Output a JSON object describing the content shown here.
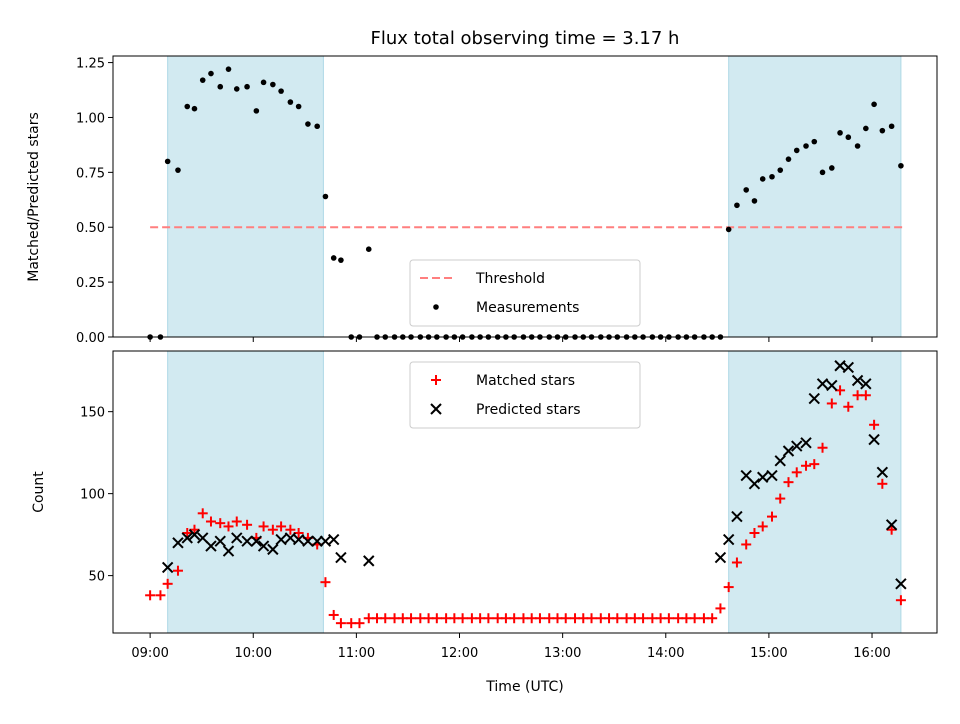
{
  "chart_data": {
    "title": "Flux total observing time = 3.17 h",
    "xlabel": "Time (UTC)",
    "x_ticks": [
      "09:00",
      "10:00",
      "11:00",
      "12:00",
      "13:00",
      "14:00",
      "15:00",
      "16:00"
    ],
    "shaded_spans": [
      [
        9.17,
        10.68
      ],
      [
        14.61,
        16.28
      ]
    ],
    "shade_color": "#add8e6",
    "panels": [
      {
        "type": "scatter",
        "ylabel": "Matched/Predicted stars",
        "ylim": [
          0,
          1.28
        ],
        "y_ticks": [
          "0.00",
          "0.25",
          "0.50",
          "0.75",
          "1.00",
          "1.25"
        ],
        "threshold": {
          "name": "Threshold",
          "value": 0.5,
          "x_range": [
            9.0,
            16.3
          ],
          "color": "#ff7f7f"
        },
        "series": [
          {
            "name": "Measurements",
            "color": "#000000",
            "x": [
              9.0,
              9.1,
              9.17,
              9.27,
              9.36,
              9.43,
              9.51,
              9.59,
              9.68,
              9.76,
              9.84,
              9.94,
              10.03,
              10.1,
              10.19,
              10.27,
              10.36,
              10.44,
              10.53,
              10.62,
              10.7,
              10.78,
              10.85,
              10.95,
              11.03,
              11.12,
              11.2,
              11.28,
              11.37,
              11.45,
              11.53,
              11.62,
              11.7,
              11.78,
              11.87,
              11.95,
              12.03,
              12.12,
              12.2,
              12.28,
              12.37,
              12.45,
              12.53,
              12.62,
              12.7,
              12.78,
              12.87,
              12.95,
              13.03,
              13.12,
              13.2,
              13.28,
              13.37,
              13.45,
              13.53,
              13.62,
              13.7,
              13.78,
              13.87,
              13.95,
              14.03,
              14.12,
              14.2,
              14.28,
              14.37,
              14.45,
              14.53,
              14.61,
              14.69,
              14.78,
              14.86,
              14.94,
              15.03,
              15.11,
              15.19,
              15.27,
              15.36,
              15.44,
              15.52,
              15.61,
              15.69,
              15.77,
              15.86,
              15.94,
              16.02,
              16.1,
              16.19,
              16.28
            ],
            "y": [
              0.0,
              0.0,
              0.8,
              0.76,
              1.05,
              1.04,
              1.17,
              1.2,
              1.14,
              1.22,
              1.13,
              1.14,
              1.03,
              1.16,
              1.15,
              1.12,
              1.07,
              1.05,
              0.97,
              0.96,
              0.64,
              0.36,
              0.35,
              0.0,
              0.0,
              0.4,
              0.0,
              0.0,
              0.0,
              0.0,
              0.0,
              0.0,
              0.0,
              0.0,
              0.0,
              0.0,
              0.0,
              0.0,
              0.0,
              0.0,
              0.0,
              0.0,
              0.0,
              0.0,
              0.0,
              0.0,
              0.0,
              0.0,
              0.0,
              0.0,
              0.0,
              0.0,
              0.0,
              0.0,
              0.0,
              0.0,
              0.0,
              0.0,
              0.0,
              0.0,
              0.0,
              0.0,
              0.0,
              0.0,
              0.0,
              0.0,
              0.0,
              0.49,
              0.6,
              0.67,
              0.62,
              0.72,
              0.73,
              0.76,
              0.81,
              0.85,
              0.87,
              0.89,
              0.75,
              0.77,
              0.93,
              0.91,
              0.87,
              0.95,
              1.06,
              0.94,
              0.96,
              0.78
            ]
          }
        ],
        "legend": [
          "Threshold",
          "Measurements"
        ],
        "legend_position": "bottom-center"
      },
      {
        "type": "scatter",
        "ylabel": "Count",
        "ylim": [
          15,
          187
        ],
        "y_ticks": [
          "50",
          "100",
          "150"
        ],
        "series": [
          {
            "name": "Matched stars",
            "marker": "+",
            "color": "#ff0000",
            "x": [
              9.0,
              9.1,
              9.17,
              9.27,
              9.36,
              9.43,
              9.51,
              9.59,
              9.68,
              9.76,
              9.84,
              9.94,
              10.03,
              10.1,
              10.19,
              10.27,
              10.36,
              10.44,
              10.53,
              10.62,
              10.7,
              10.78,
              10.85,
              10.95,
              11.03,
              11.12,
              11.2,
              11.28,
              11.37,
              11.45,
              11.53,
              11.62,
              11.7,
              11.78,
              11.87,
              11.95,
              12.03,
              12.12,
              12.2,
              12.28,
              12.37,
              12.45,
              12.53,
              12.62,
              12.7,
              12.78,
              12.87,
              12.95,
              13.03,
              13.12,
              13.2,
              13.28,
              13.37,
              13.45,
              13.53,
              13.62,
              13.7,
              13.78,
              13.87,
              13.95,
              14.03,
              14.12,
              14.2,
              14.28,
              14.37,
              14.45,
              14.53,
              14.61,
              14.69,
              14.78,
              14.86,
              14.94,
              15.03,
              15.11,
              15.19,
              15.27,
              15.36,
              15.44,
              15.52,
              15.61,
              15.69,
              15.77,
              15.86,
              15.94,
              16.02,
              16.1,
              16.19,
              16.28
            ],
            "y": [
              38,
              38,
              45,
              53,
              76,
              78,
              88,
              83,
              82,
              80,
              83,
              81,
              73,
              80,
              78,
              80,
              78,
              76,
              73,
              69,
              46,
              26,
              21,
              21,
              21,
              24,
              24,
              24,
              24,
              24,
              24,
              24,
              24,
              24,
              24,
              24,
              24,
              24,
              24,
              24,
              24,
              24,
              24,
              24,
              24,
              24,
              24,
              24,
              24,
              24,
              24,
              24,
              24,
              24,
              24,
              24,
              24,
              24,
              24,
              24,
              24,
              24,
              24,
              24,
              24,
              24,
              30,
              43,
              58,
              69,
              76,
              80,
              86,
              97,
              107,
              113,
              117,
              118,
              128,
              155,
              163,
              153,
              160,
              160,
              142,
              106,
              78,
              35
            ]
          },
          {
            "name": "Predicted stars",
            "marker": "x",
            "color": "#000000",
            "x": [
              9.17,
              9.27,
              9.36,
              9.43,
              9.51,
              9.59,
              9.68,
              9.76,
              9.84,
              9.94,
              10.03,
              10.1,
              10.19,
              10.27,
              10.36,
              10.44,
              10.53,
              10.62,
              10.7,
              10.78,
              10.85,
              11.12,
              14.53,
              14.61,
              14.69,
              14.78,
              14.86,
              14.94,
              15.03,
              15.11,
              15.19,
              15.27,
              15.36,
              15.44,
              15.52,
              15.61,
              15.69,
              15.77,
              15.86,
              15.94,
              16.02,
              16.1,
              16.19,
              16.28
            ],
            "y": [
              55,
              70,
              73,
              75,
              73,
              68,
              71,
              65,
              73,
              71,
              71,
              68,
              66,
              72,
              73,
              72,
              71,
              71,
              71,
              72,
              61,
              59,
              61,
              72,
              86,
              111,
              106,
              110,
              111,
              120,
              126,
              129,
              131,
              158,
              167,
              166,
              178,
              177,
              169,
              167,
              133,
              113,
              81,
              45
            ]
          }
        ],
        "legend": [
          "Matched stars",
          "Predicted stars"
        ],
        "legend_position": "top-center"
      }
    ]
  }
}
